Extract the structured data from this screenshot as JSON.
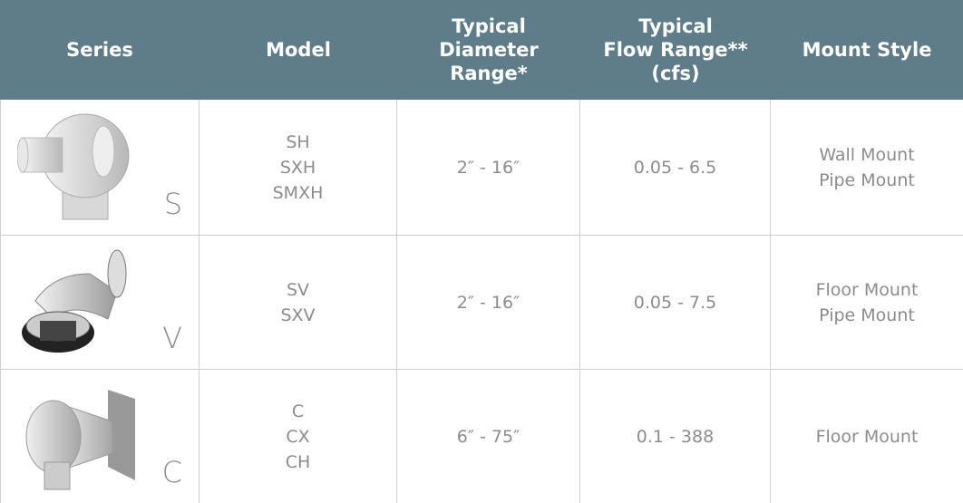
{
  "header": [
    [
      "Series"
    ],
    [
      "Model"
    ],
    [
      "Typical",
      "Diameter",
      "Range*"
    ],
    [
      "Typical",
      "Flow Range**",
      "(cfs)"
    ],
    [
      "Mount Style"
    ]
  ],
  "rows": [
    {
      "series": "S",
      "models": [
        "SH",
        "SXH",
        "SMXH"
      ],
      "diameter": "2″ - 16″",
      "flow": "0.05 - 6.5",
      "mount": [
        "Wall Mount",
        "Pipe Mount"
      ]
    },
    {
      "series": "V",
      "models": [
        "SV",
        "SXV"
      ],
      "diameter": "2″ - 16″",
      "flow": "0.05 - 7.5",
      "mount": [
        "Floor Mount",
        "Pipe Mount"
      ]
    },
    {
      "series": "C",
      "models": [
        "C",
        "CX",
        "CH"
      ],
      "diameter": "6″ - 75″",
      "flow": "0.1 - 388",
      "mount": [
        "Floor Mount"
      ]
    }
  ]
}
